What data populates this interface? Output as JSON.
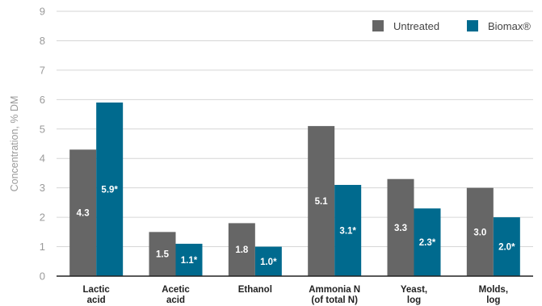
{
  "chart_data": {
    "type": "bar",
    "ylabel": "Concentration, % DM",
    "ylim": [
      0,
      9
    ],
    "yticks": [
      0,
      1,
      2,
      3,
      4,
      5,
      6,
      7,
      8,
      9
    ],
    "grid": true,
    "legend_position": "top-right",
    "categories": [
      [
        "Lactic",
        "acid"
      ],
      [
        "Acetic",
        "acid"
      ],
      [
        "Ethanol"
      ],
      [
        "Ammonia N",
        "(of total N)"
      ],
      [
        "Yeast,",
        "log"
      ],
      [
        "Molds,",
        "log"
      ]
    ],
    "series": [
      {
        "name": "Untreated",
        "color": "#666666",
        "values": [
          4.3,
          1.5,
          1.8,
          5.1,
          3.3,
          3.0
        ],
        "labels": [
          "4.3",
          "1.5",
          "1.8",
          "5.1",
          "3.3",
          "3.0"
        ]
      },
      {
        "name": "Biomax®",
        "color": "#006a8e",
        "values": [
          5.9,
          1.1,
          1.0,
          3.1,
          2.3,
          2.0
        ],
        "labels": [
          "5.9*",
          "1.1*",
          "1.0*",
          "3.1*",
          "2.3*",
          "2.0*"
        ]
      }
    ]
  }
}
